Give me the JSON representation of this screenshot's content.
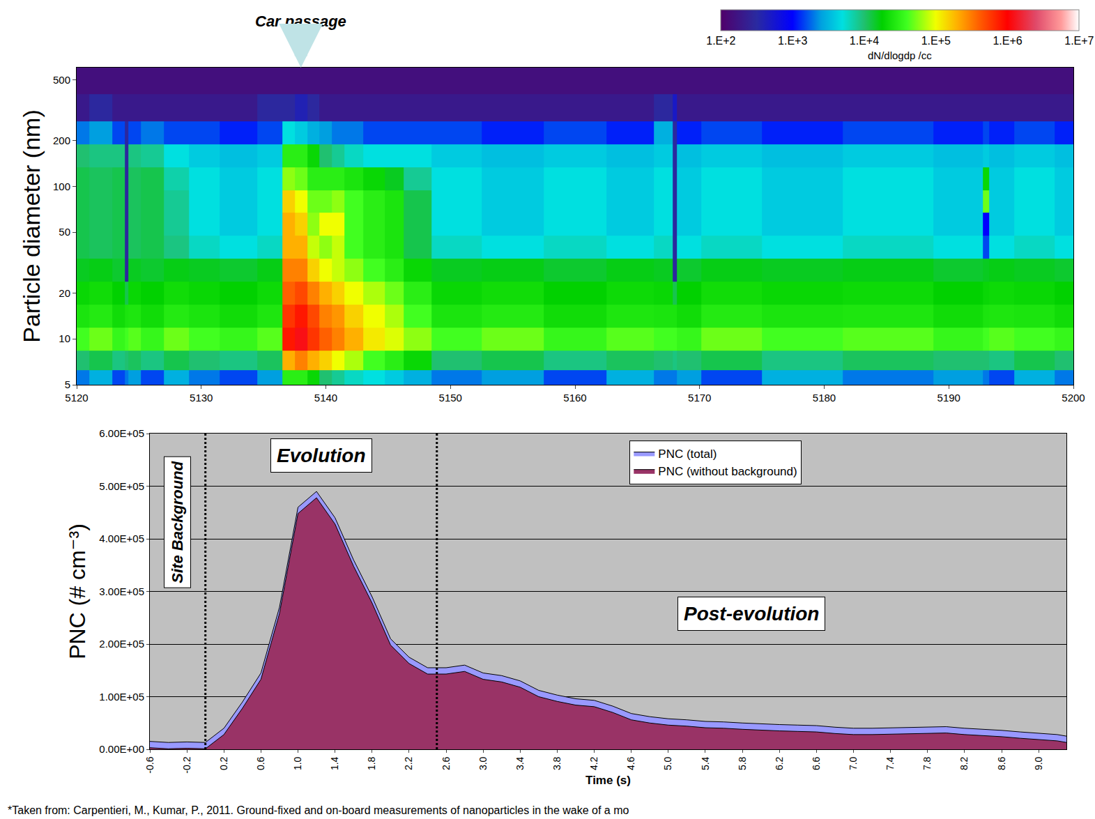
{
  "chart_data": [
    {
      "type": "heatmap",
      "x": [
        5120,
        5122,
        5123.7,
        5124,
        5124.3,
        5126,
        5128,
        5130,
        5133,
        5136,
        5137,
        5138,
        5139,
        5140,
        5141,
        5142,
        5144,
        5145.5,
        5147,
        5150,
        5155,
        5160,
        5165,
        5167.7,
        5168,
        5168.3,
        5172,
        5178,
        5185,
        5192.5,
        5193,
        5193.5,
        5197,
        5200
      ],
      "y": [
        5.5,
        7,
        10,
        14,
        20,
        28,
        40,
        56,
        80,
        110,
        160,
        220,
        320,
        500
      ],
      "cells": [
        [
          2000,
          3000,
          1500,
          2000,
          2500,
          1500,
          3000,
          2000,
          1500,
          2500,
          30000,
          30000,
          20000,
          10000,
          8000,
          6000,
          5000,
          4000,
          3000,
          2000,
          2500,
          1500,
          3000,
          2000,
          2000,
          2500,
          1500,
          3000,
          2000,
          2500,
          2000,
          1500,
          3000,
          2000
        ],
        [
          10000,
          12000,
          9000,
          10000,
          11000,
          9000,
          12000,
          10000,
          9000,
          11000,
          200000,
          300000,
          200000,
          150000,
          100000,
          70000,
          40000,
          30000,
          20000,
          10000,
          12000,
          9000,
          11000,
          10000,
          9000,
          10000,
          12000,
          9000,
          11000,
          10000,
          10000,
          9000,
          12000,
          10000
        ],
        [
          40000,
          50000,
          35000,
          40000,
          45000,
          35000,
          50000,
          40000,
          35000,
          45000,
          800000,
          1200000,
          600000,
          400000,
          300000,
          200000,
          120000,
          90000,
          60000,
          40000,
          50000,
          35000,
          45000,
          40000,
          40000,
          35000,
          50000,
          40000,
          45000,
          35000,
          40000,
          45000,
          40000,
          35000
        ],
        [
          25000,
          28000,
          22000,
          25000,
          26000,
          22000,
          28000,
          25000,
          22000,
          26000,
          600000,
          800000,
          500000,
          300000,
          250000,
          150000,
          100000,
          70000,
          40000,
          25000,
          28000,
          22000,
          26000,
          25000,
          25000,
          22000,
          28000,
          25000,
          26000,
          22000,
          25000,
          26000,
          25000,
          22000
        ],
        [
          20000,
          22000,
          18000,
          12000,
          20000,
          18000,
          22000,
          20000,
          18000,
          21000,
          400000,
          500000,
          300000,
          200000,
          150000,
          100000,
          70000,
          50000,
          30000,
          20000,
          22000,
          18000,
          21000,
          20000,
          12000,
          18000,
          22000,
          20000,
          21000,
          18000,
          20000,
          21000,
          20000,
          18000
        ],
        [
          15000,
          16000,
          14000,
          300,
          15000,
          14000,
          16000,
          15000,
          14000,
          16000,
          300000,
          300000,
          150000,
          100000,
          80000,
          60000,
          40000,
          30000,
          20000,
          15000,
          16000,
          14000,
          16000,
          15000,
          300,
          14000,
          16000,
          15000,
          16000,
          14000,
          15000,
          16000,
          15000,
          14000
        ],
        [
          12000,
          11000,
          12000,
          300,
          11000,
          12000,
          9000,
          6000,
          5000,
          6000,
          200000,
          200000,
          80000,
          60000,
          80000,
          40000,
          30000,
          25000,
          12000,
          6000,
          5000,
          6000,
          5000,
          6000,
          300,
          5000,
          6000,
          5000,
          6000,
          5000,
          1500,
          5000,
          6000,
          5000
        ],
        [
          12000,
          11000,
          12000,
          300,
          11000,
          12000,
          8000,
          5000,
          4000,
          5000,
          200000,
          150000,
          60000,
          100000,
          100000,
          40000,
          30000,
          25000,
          12000,
          5000,
          4000,
          5000,
          4000,
          5000,
          300,
          4000,
          5000,
          4000,
          5000,
          4000,
          1000,
          4000,
          5000,
          4000
        ],
        [
          12000,
          11000,
          12000,
          300,
          11000,
          12000,
          8000,
          5000,
          4000,
          5000,
          150000,
          100000,
          50000,
          50000,
          60000,
          40000,
          30000,
          25000,
          12000,
          5000,
          4000,
          5000,
          4000,
          5000,
          300,
          4000,
          5000,
          4000,
          5000,
          4000,
          50000,
          4000,
          5000,
          4000
        ],
        [
          12000,
          11000,
          12000,
          300,
          11000,
          12000,
          7000,
          5000,
          4000,
          5000,
          60000,
          50000,
          30000,
          30000,
          30000,
          25000,
          20000,
          15000,
          8000,
          5000,
          4000,
          5000,
          4000,
          5000,
          300,
          4000,
          5000,
          4000,
          5000,
          4000,
          20000,
          4000,
          5000,
          4000
        ],
        [
          10000,
          9000,
          9000,
          300,
          9000,
          8000,
          5000,
          4000,
          3500,
          4000,
          30000,
          30000,
          20000,
          10000,
          8000,
          6000,
          5000,
          5000,
          5000,
          4000,
          3500,
          4000,
          3500,
          4000,
          300,
          3500,
          4000,
          3500,
          4000,
          3500,
          4000,
          3500,
          4000,
          3500
        ],
        [
          2000,
          2500,
          1500,
          300,
          1500,
          2000,
          1500,
          1500,
          1200,
          1500,
          5000,
          4000,
          3000,
          2500,
          2000,
          2000,
          1500,
          1500,
          1500,
          1500,
          1200,
          1500,
          1200,
          3000,
          300,
          1200,
          1500,
          1200,
          1500,
          1200,
          1500,
          1200,
          1500,
          1200
        ],
        [
          200,
          300,
          200,
          200,
          200,
          200,
          200,
          200,
          200,
          300,
          300,
          400,
          300,
          200,
          200,
          200,
          200,
          200,
          200,
          200,
          200,
          200,
          200,
          300,
          500,
          200,
          200,
          200,
          200,
          200,
          200,
          200,
          200,
          200
        ],
        [
          150,
          150,
          150,
          150,
          150,
          150,
          150,
          150,
          150,
          150,
          150,
          150,
          150,
          150,
          150,
          150,
          150,
          150,
          150,
          150,
          150,
          150,
          150,
          150,
          150,
          150,
          150,
          150,
          150,
          150,
          150,
          150,
          150,
          150
        ]
      ],
      "xlim": [
        5120,
        5200
      ],
      "xticks": [
        5120,
        5130,
        5140,
        5150,
        5160,
        5170,
        5180,
        5190,
        5200
      ],
      "ylim": [
        5,
        600
      ],
      "yticks": [
        5,
        10,
        20,
        50,
        100,
        200,
        500
      ],
      "log": "y",
      "grid": false,
      "y_label": "Particle diameter (nm)",
      "colorbar": {
        "label": "dN/dlogdp /cc",
        "range": [
          100,
          10000000
        ],
        "ticks": [
          {
            "value": 100,
            "label": "1.E+2"
          },
          {
            "value": 1000,
            "label": "1.E+3"
          },
          {
            "value": 10000,
            "label": "1.E+4"
          },
          {
            "value": 100000,
            "label": "1.E+5"
          },
          {
            "value": 1000000,
            "label": "1.E+6"
          },
          {
            "value": 10000000,
            "label": "1.E+7"
          }
        ]
      },
      "annotations": [
        {
          "text": "Car passage",
          "x": 5138
        }
      ]
    },
    {
      "type": "area",
      "x": [
        -0.6,
        -0.4,
        -0.2,
        0,
        0.2,
        0.4,
        0.6,
        0.8,
        1,
        1.2,
        1.4,
        1.6,
        1.8,
        2,
        2.2,
        2.4,
        2.6,
        2.8,
        3,
        3.2,
        3.4,
        3.6,
        3.8,
        4,
        4.2,
        4.4,
        4.6,
        4.8,
        5,
        5.2,
        5.4,
        5.6,
        5.8,
        6,
        6.2,
        6.4,
        6.6,
        6.8,
        7,
        7.2,
        7.4,
        7.6,
        7.8,
        8,
        8.2,
        8.4,
        8.6,
        8.8,
        9,
        9.2,
        9.3
      ],
      "series": [
        {
          "name": "PNC (total)",
          "color": "#9999ff",
          "values": [
            15000,
            13000,
            14000,
            13000,
            40000,
            90000,
            145000,
            270000,
            460000,
            490000,
            440000,
            360000,
            290000,
            210000,
            175000,
            155000,
            155000,
            160000,
            145000,
            140000,
            130000,
            112000,
            103000,
            96000,
            93000,
            82000,
            68000,
            62000,
            58000,
            56000,
            53000,
            52000,
            50000,
            48000,
            47000,
            46000,
            45000,
            42000,
            40000,
            40000,
            41000,
            42000,
            43000,
            43000,
            40000,
            38000,
            36000,
            33000,
            30000,
            28000,
            25000
          ]
        },
        {
          "name": "PNC (without background)",
          "color": "#993366",
          "values": [
            3000,
            1000,
            2000,
            1000,
            28000,
            78000,
            133000,
            258000,
            448000,
            478000,
            428000,
            348000,
            278000,
            198000,
            163000,
            143000,
            143000,
            148000,
            133000,
            128000,
            118000,
            100000,
            91000,
            84000,
            81000,
            70000,
            56000,
            50000,
            46000,
            44000,
            41000,
            40000,
            38000,
            36000,
            35000,
            34000,
            33000,
            30000,
            28000,
            28000,
            29000,
            30000,
            31000,
            31000,
            28000,
            26000,
            24000,
            21000,
            18000,
            16000,
            13000
          ]
        }
      ],
      "xlim": [
        -0.6,
        9.3
      ],
      "xticks": [
        -0.6,
        -0.2,
        0.2,
        0.6,
        {
          "value": 1,
          "label": "1.0"
        },
        1.4,
        1.8,
        2.2,
        2.6,
        {
          "value": 3,
          "label": "3.0"
        },
        3.4,
        3.8,
        4.2,
        4.6,
        {
          "value": 5,
          "label": "5.0"
        },
        5.4,
        5.8,
        6.2,
        6.6,
        {
          "value": 7,
          "label": "7.0"
        },
        7.4,
        7.8,
        8.2,
        8.6,
        {
          "value": 9,
          "label": "9.0"
        }
      ],
      "ylim": [
        0,
        600000
      ],
      "yticks": [
        {
          "value": 0,
          "label": "0.00E+00"
        },
        {
          "value": 100000,
          "label": "1.00E+05"
        },
        {
          "value": 200000,
          "label": "2.00E+05"
        },
        {
          "value": 300000,
          "label": "3.00E+05"
        },
        {
          "value": 400000,
          "label": "4.00E+05"
        },
        {
          "value": 500000,
          "label": "5.00E+05"
        },
        {
          "value": 600000,
          "label": "6.00E+05"
        }
      ],
      "x_label": "Time (s)",
      "y_label": "PNC (# cm⁻³)",
      "grid": true,
      "legend": "upper right",
      "phase_boundaries": [
        0,
        2.5
      ],
      "phase_labels": [
        "Site Background",
        "Evolution",
        "Post-evolution"
      ],
      "source": "*Taken from: Carpentieri, M., Kumar, P., 2011. Ground-fixed and on-board measurements of nanoparticles in the wake of a mo"
    }
  ]
}
